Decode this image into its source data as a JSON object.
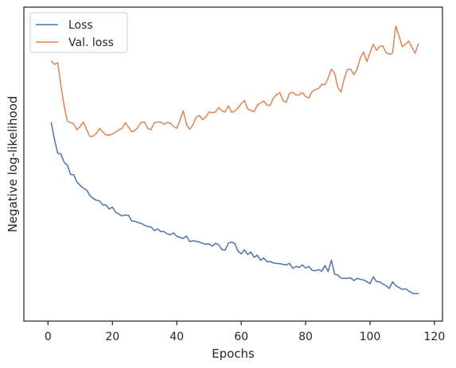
{
  "chart_data": {
    "type": "line",
    "title": "",
    "xlabel": "Epochs",
    "ylabel": "Negative log-likelihood",
    "xlim": [
      -7.5,
      122.5
    ],
    "ylim": [
      0,
      100
    ],
    "xticks": [
      0,
      20,
      40,
      60,
      80,
      100,
      120
    ],
    "yticks": [],
    "grid": false,
    "legend": {
      "position": "top-left"
    },
    "series": [
      {
        "name": "Loss",
        "color": "#4c72b0",
        "x": [
          1,
          2,
          3,
          4,
          5,
          6,
          7,
          8,
          9,
          10,
          11,
          12,
          13,
          14,
          15,
          16,
          17,
          18,
          19,
          20,
          21,
          22,
          23,
          24,
          25,
          26,
          27,
          28,
          29,
          30,
          31,
          32,
          33,
          34,
          35,
          36,
          37,
          38,
          39,
          40,
          41,
          42,
          43,
          44,
          45,
          46,
          47,
          48,
          49,
          50,
          51,
          52,
          53,
          54,
          55,
          56,
          57,
          58,
          59,
          60,
          61,
          62,
          63,
          64,
          65,
          66,
          67,
          68,
          69,
          70,
          71,
          72,
          73,
          74,
          75,
          76,
          77,
          78,
          79,
          80,
          81,
          82,
          83,
          84,
          85,
          86,
          87,
          88,
          89,
          90,
          91,
          92,
          93,
          94,
          95,
          96,
          97,
          98,
          99,
          100,
          101,
          102,
          103,
          104,
          105,
          106,
          107,
          108,
          109,
          110,
          111,
          112,
          113,
          114,
          115
        ],
        "y": [
          63.2,
          57.9,
          53.5,
          53.2,
          50.6,
          49.7,
          46.7,
          46.6,
          44.3,
          43.2,
          42.3,
          41.7,
          40.0,
          39.1,
          38.5,
          38.3,
          37.0,
          37.0,
          35.7,
          36.3,
          34.7,
          34.1,
          33.5,
          33.8,
          33.7,
          31.9,
          31.8,
          31.4,
          31.1,
          30.5,
          30.1,
          30.0,
          28.8,
          29.4,
          28.5,
          28.5,
          27.8,
          27.5,
          28.1,
          27.0,
          26.7,
          26.3,
          27.1,
          25.3,
          25.6,
          25.4,
          25.2,
          24.8,
          24.5,
          24.6,
          23.9,
          24.8,
          24.3,
          22.8,
          22.6,
          24.8,
          25.2,
          24.7,
          22.3,
          21.4,
          22.7,
          21.2,
          22.0,
          20.3,
          21.0,
          19.4,
          20.1,
          18.9,
          19.0,
          18.5,
          18.4,
          18.3,
          18.1,
          17.9,
          18.4,
          16.8,
          17.4,
          17.1,
          17.9,
          16.9,
          17.4,
          16.2,
          16.0,
          16.4,
          15.9,
          17.7,
          15.8,
          19.4,
          15.0,
          14.6,
          13.7,
          13.6,
          13.6,
          13.8,
          12.9,
          13.6,
          13.3,
          13.1,
          12.6,
          11.9,
          14.1,
          12.6,
          12.5,
          11.8,
          11.3,
          10.4,
          12.5,
          11.3,
          10.7,
          10.1,
          10.3,
          9.6,
          9.0,
          8.7,
          8.8
        ]
      },
      {
        "name": "Val. loss",
        "color": "#dd8452",
        "x": [
          1,
          2,
          3,
          4,
          5,
          6,
          7,
          8,
          9,
          10,
          11,
          12,
          13,
          14,
          15,
          16,
          17,
          18,
          19,
          20,
          21,
          22,
          23,
          24,
          25,
          26,
          27,
          28,
          29,
          30,
          31,
          32,
          33,
          34,
          35,
          36,
          37,
          38,
          39,
          40,
          41,
          42,
          43,
          44,
          45,
          46,
          47,
          48,
          49,
          50,
          51,
          52,
          53,
          54,
          55,
          56,
          57,
          58,
          59,
          60,
          61,
          62,
          63,
          64,
          65,
          66,
          67,
          68,
          69,
          70,
          71,
          72,
          73,
          74,
          75,
          76,
          77,
          78,
          79,
          80,
          81,
          82,
          83,
          84,
          85,
          86,
          87,
          88,
          89,
          90,
          91,
          92,
          93,
          94,
          95,
          96,
          97,
          98,
          99,
          100,
          101,
          102,
          103,
          104,
          105,
          106,
          107,
          108,
          109,
          110,
          111,
          112,
          113,
          114,
          115
        ],
        "y": [
          82.9,
          81.8,
          82.3,
          75.1,
          68.5,
          63.7,
          63.2,
          62.8,
          60.9,
          62.0,
          63.4,
          61.0,
          58.8,
          58.9,
          59.8,
          61.4,
          60.2,
          59.3,
          59.2,
          59.6,
          60.2,
          60.9,
          61.4,
          63.2,
          61.8,
          60.3,
          60.7,
          61.9,
          63.4,
          63.4,
          61.3,
          61.0,
          63.2,
          63.4,
          63.4,
          62.7,
          63.3,
          63.0,
          62.0,
          61.4,
          64.0,
          67.0,
          62.7,
          61.1,
          62.5,
          65.0,
          65.5,
          64.2,
          65.0,
          66.6,
          66.4,
          66.6,
          68.0,
          67.0,
          66.6,
          68.6,
          66.5,
          66.9,
          67.9,
          69.2,
          70.3,
          67.6,
          67.1,
          66.7,
          68.8,
          69.5,
          70.1,
          68.8,
          68.7,
          71.1,
          72.1,
          72.8,
          70.2,
          69.7,
          72.5,
          72.9,
          72.0,
          72.1,
          72.8,
          71.5,
          71.1,
          73.1,
          73.8,
          74.0,
          75.4,
          75.3,
          77.4,
          80.2,
          79.0,
          74.5,
          73.0,
          77.3,
          80.2,
          80.2,
          78.5,
          80.2,
          83.9,
          85.7,
          82.7,
          85.5,
          88.2,
          86.2,
          87.5,
          87.6,
          85.5,
          85.0,
          85.3,
          94.0,
          90.9,
          87.4,
          88.1,
          89.2,
          87.3,
          85.3,
          88.3
        ]
      }
    ]
  }
}
